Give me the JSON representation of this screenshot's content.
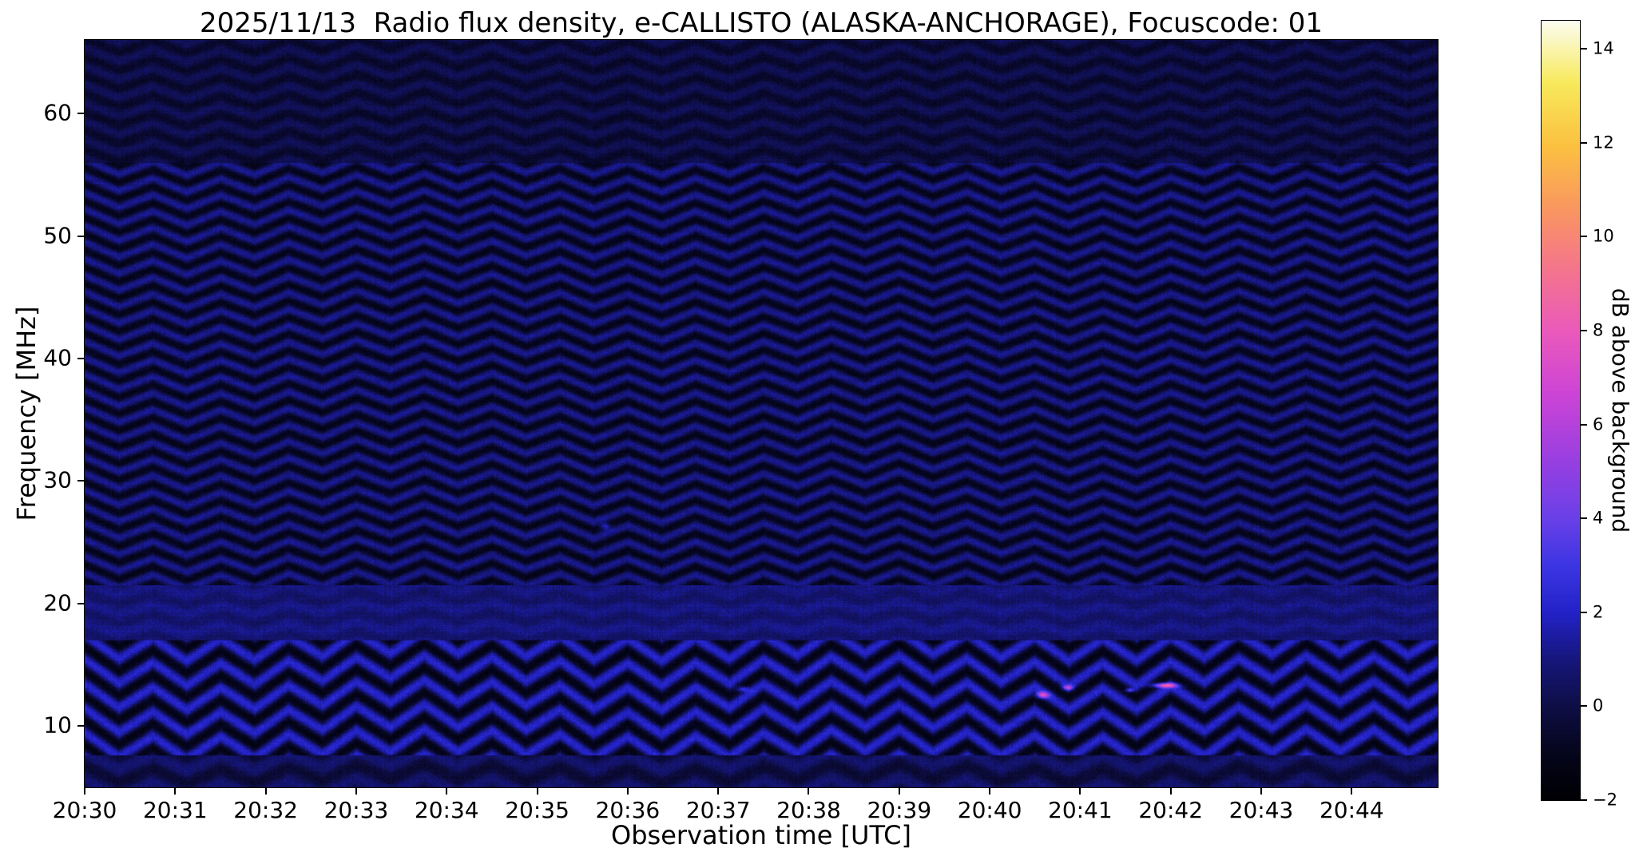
{
  "chart_data": {
    "type": "heatmap",
    "title": "2025/11/13  Radio flux density, e-CALLISTO (ALASKA-ANCHORAGE), Focuscode: 01",
    "xlabel": "Observation time [UTC]",
    "ylabel": "Frequency [MHz]",
    "colorbar_label": "dB above background",
    "x_tick_labels": [
      "20:30",
      "20:31",
      "20:32",
      "20:33",
      "20:34",
      "20:35",
      "20:36",
      "20:37",
      "20:38",
      "20:39",
      "20:40",
      "20:41",
      "20:42",
      "20:43",
      "20:44"
    ],
    "x_tick_seconds": [
      0,
      60,
      120,
      180,
      240,
      300,
      360,
      420,
      480,
      540,
      600,
      660,
      720,
      780,
      840
    ],
    "x_range_seconds": [
      0,
      897
    ],
    "x_start_time_utc": "20:30",
    "y_ticks_mhz": [
      10,
      20,
      30,
      40,
      50,
      60
    ],
    "y_tick_labels": [
      "10",
      "20",
      "30",
      "40",
      "50",
      "60"
    ],
    "y_range_mhz": [
      5.0,
      66.0
    ],
    "colorbar_ticks_db": [
      -2,
      0,
      2,
      4,
      6,
      8,
      10,
      12,
      14
    ],
    "colorbar_tick_labels": [
      "−2",
      "0",
      "2",
      "4",
      "6",
      "8",
      "10",
      "12",
      "14"
    ],
    "color_range_db": [
      -2,
      14.6
    ],
    "grid": false,
    "colormap_stops": [
      {
        "u": 0.0,
        "color": "#000003"
      },
      {
        "u": 0.06,
        "color": "#05051c"
      },
      {
        "u": 0.12,
        "color": "#0e0e46"
      },
      {
        "u": 0.18,
        "color": "#16167c"
      },
      {
        "u": 0.24,
        "color": "#2222c8"
      },
      {
        "u": 0.3,
        "color": "#3c35e3"
      },
      {
        "u": 0.36,
        "color": "#6940e8"
      },
      {
        "u": 0.44,
        "color": "#9b3fe0"
      },
      {
        "u": 0.52,
        "color": "#cc44d6"
      },
      {
        "u": 0.6,
        "color": "#ea59bc"
      },
      {
        "u": 0.68,
        "color": "#f4748d"
      },
      {
        "u": 0.76,
        "color": "#f99760"
      },
      {
        "u": 0.84,
        "color": "#fbc140"
      },
      {
        "u": 0.92,
        "color": "#f8e95b"
      },
      {
        "u": 1.0,
        "color": "#fbfdf0"
      }
    ],
    "noise_pattern": {
      "description": "Quiet-sun spectrogram dominated by wavy horizontal interference fringes (zig-zag chevrons in time), mostly -2 to +3 dB; brighter smooth band 17-21.5 MHz; strong wavy fringes 8-17 MHz and 22-56 MHz",
      "wobble_period_sec": 45,
      "drift_period_sec": 300,
      "noise_amp_db": 0.9,
      "bands": [
        {
          "f_min": 56.0,
          "f_max": 66.0,
          "base_db": -0.2,
          "stripe_amp_db": 0.5,
          "spacing_mhz": 1.5,
          "wobble_amp_mhz": 0.5
        },
        {
          "f_min": 21.5,
          "f_max": 56.0,
          "base_db": 0.05,
          "stripe_amp_db": 1.15,
          "spacing_mhz": 1.35,
          "wobble_amp_mhz": 0.55
        },
        {
          "f_min": 17.0,
          "f_max": 21.5,
          "base_db": 0.85,
          "stripe_amp_db": 0.3,
          "spacing_mhz": 1.6,
          "wobble_amp_mhz": 0.4
        },
        {
          "f_min": 7.6,
          "f_max": 17.0,
          "base_db": 0.45,
          "stripe_amp_db": 1.7,
          "spacing_mhz": 2.0,
          "wobble_amp_mhz": 0.9
        },
        {
          "f_min": 5.0,
          "f_max": 7.6,
          "base_db": 0.15,
          "stripe_amp_db": 0.6,
          "spacing_mhz": 2.2,
          "wobble_amp_mhz": 0.6
        }
      ]
    },
    "bright_features": [
      {
        "label": "magenta speck",
        "t_sec": 635,
        "f_mhz": 12.5,
        "amp_db": 6.0,
        "t_sigma_sec": 3.0,
        "f_sigma_mhz": 0.18
      },
      {
        "label": "magenta speck",
        "t_sec": 652,
        "f_mhz": 13.1,
        "amp_db": 5.0,
        "t_sigma_sec": 2.5,
        "f_sigma_mhz": 0.15
      },
      {
        "label": "pink dash",
        "t_sec": 716,
        "f_mhz": 13.3,
        "amp_db": 7.5,
        "t_sigma_sec": 6.0,
        "f_sigma_mhz": 0.14
      },
      {
        "label": "faint magenta spot",
        "t_sec": 693,
        "f_mhz": 12.9,
        "amp_db": 4.5,
        "t_sigma_sec": 2.0,
        "f_sigma_mhz": 0.12
      },
      {
        "label": "faint purple smudge",
        "t_sec": 436,
        "f_mhz": 13.0,
        "amp_db": 3.5,
        "t_sigma_sec": 3.0,
        "f_sigma_mhz": 0.15
      },
      {
        "label": "light blue speck",
        "t_sec": 345,
        "f_mhz": 26.3,
        "amp_db": 3.0,
        "t_sigma_sec": 2.5,
        "f_sigma_mhz": 0.2
      }
    ]
  }
}
